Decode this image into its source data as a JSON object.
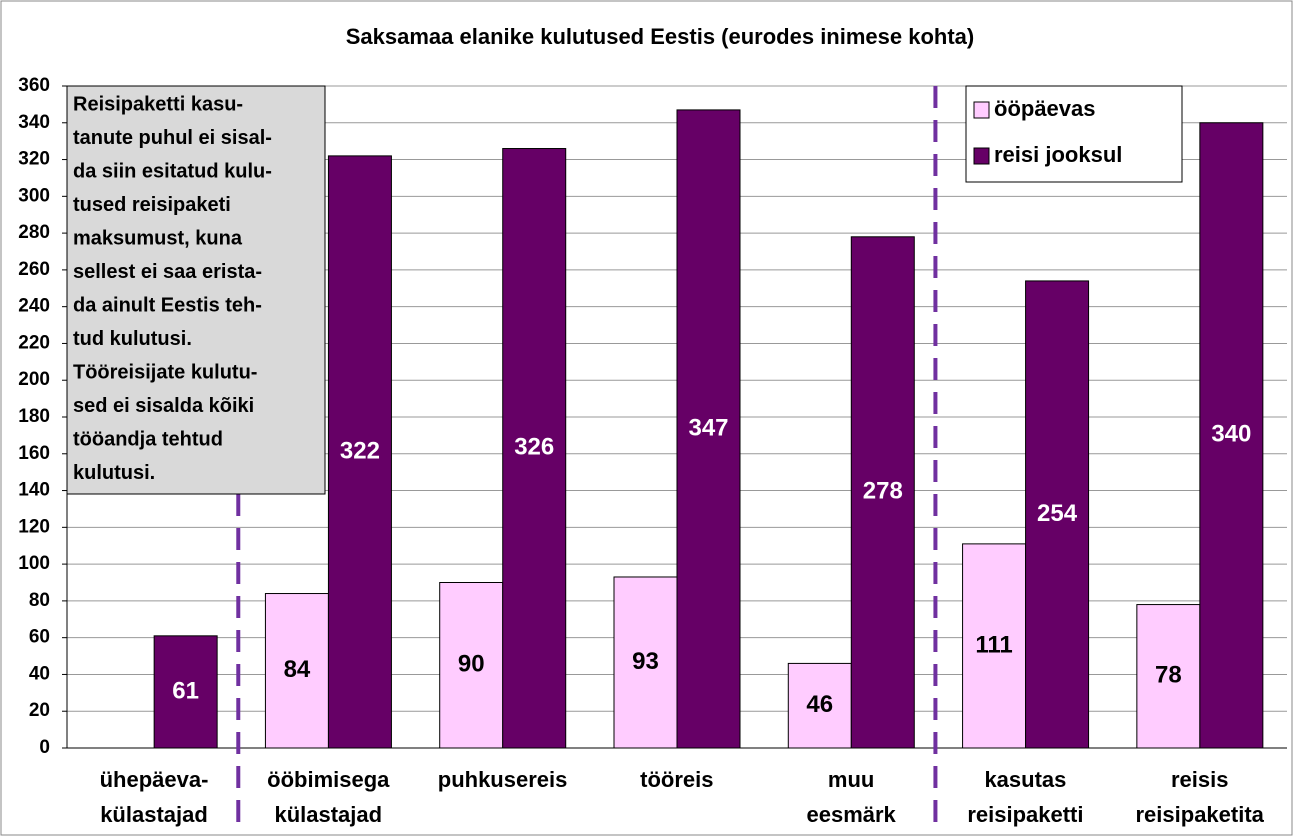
{
  "chart_data": {
    "type": "bar",
    "title": "Saksamaa elanike kulutused Eestis (eurodes inimese kohta)",
    "categories": [
      "ühepäeva-\nkülastajad",
      "ööbimisega\nkülastajad",
      "puhkusereis",
      "tööreis",
      "muu\neesmärk",
      "kasutas\nreisipaketti",
      "reisis\nreisipaketita"
    ],
    "series": [
      {
        "name": "ööpäevas",
        "color": "#ffccff",
        "values": [
          null,
          84,
          90,
          93,
          46,
          111,
          78
        ]
      },
      {
        "name": "reisi jooksul",
        "color": "#660066",
        "values": [
          61,
          322,
          326,
          347,
          278,
          254,
          340
        ]
      }
    ],
    "ylim": [
      0,
      360
    ],
    "yticks": [
      0,
      20,
      40,
      60,
      80,
      100,
      120,
      140,
      160,
      180,
      200,
      220,
      240,
      260,
      280,
      300,
      320,
      340,
      360
    ],
    "grid": true,
    "legend": "top-right",
    "annotation": [
      "Reisipaketti kasu-",
      "tanute puhul ei sisal-",
      "da siin esitatud kulu-",
      "tused reisipaketi",
      "maksumust, kuna",
      "sellest ei saa erista-",
      "da ainult Eestis teh-",
      "tud kulutusi.",
      "Tööreisijate kulutu-",
      "sed ei sisalda kõiki",
      "tööandja tehtud",
      "kulutusi."
    ]
  }
}
